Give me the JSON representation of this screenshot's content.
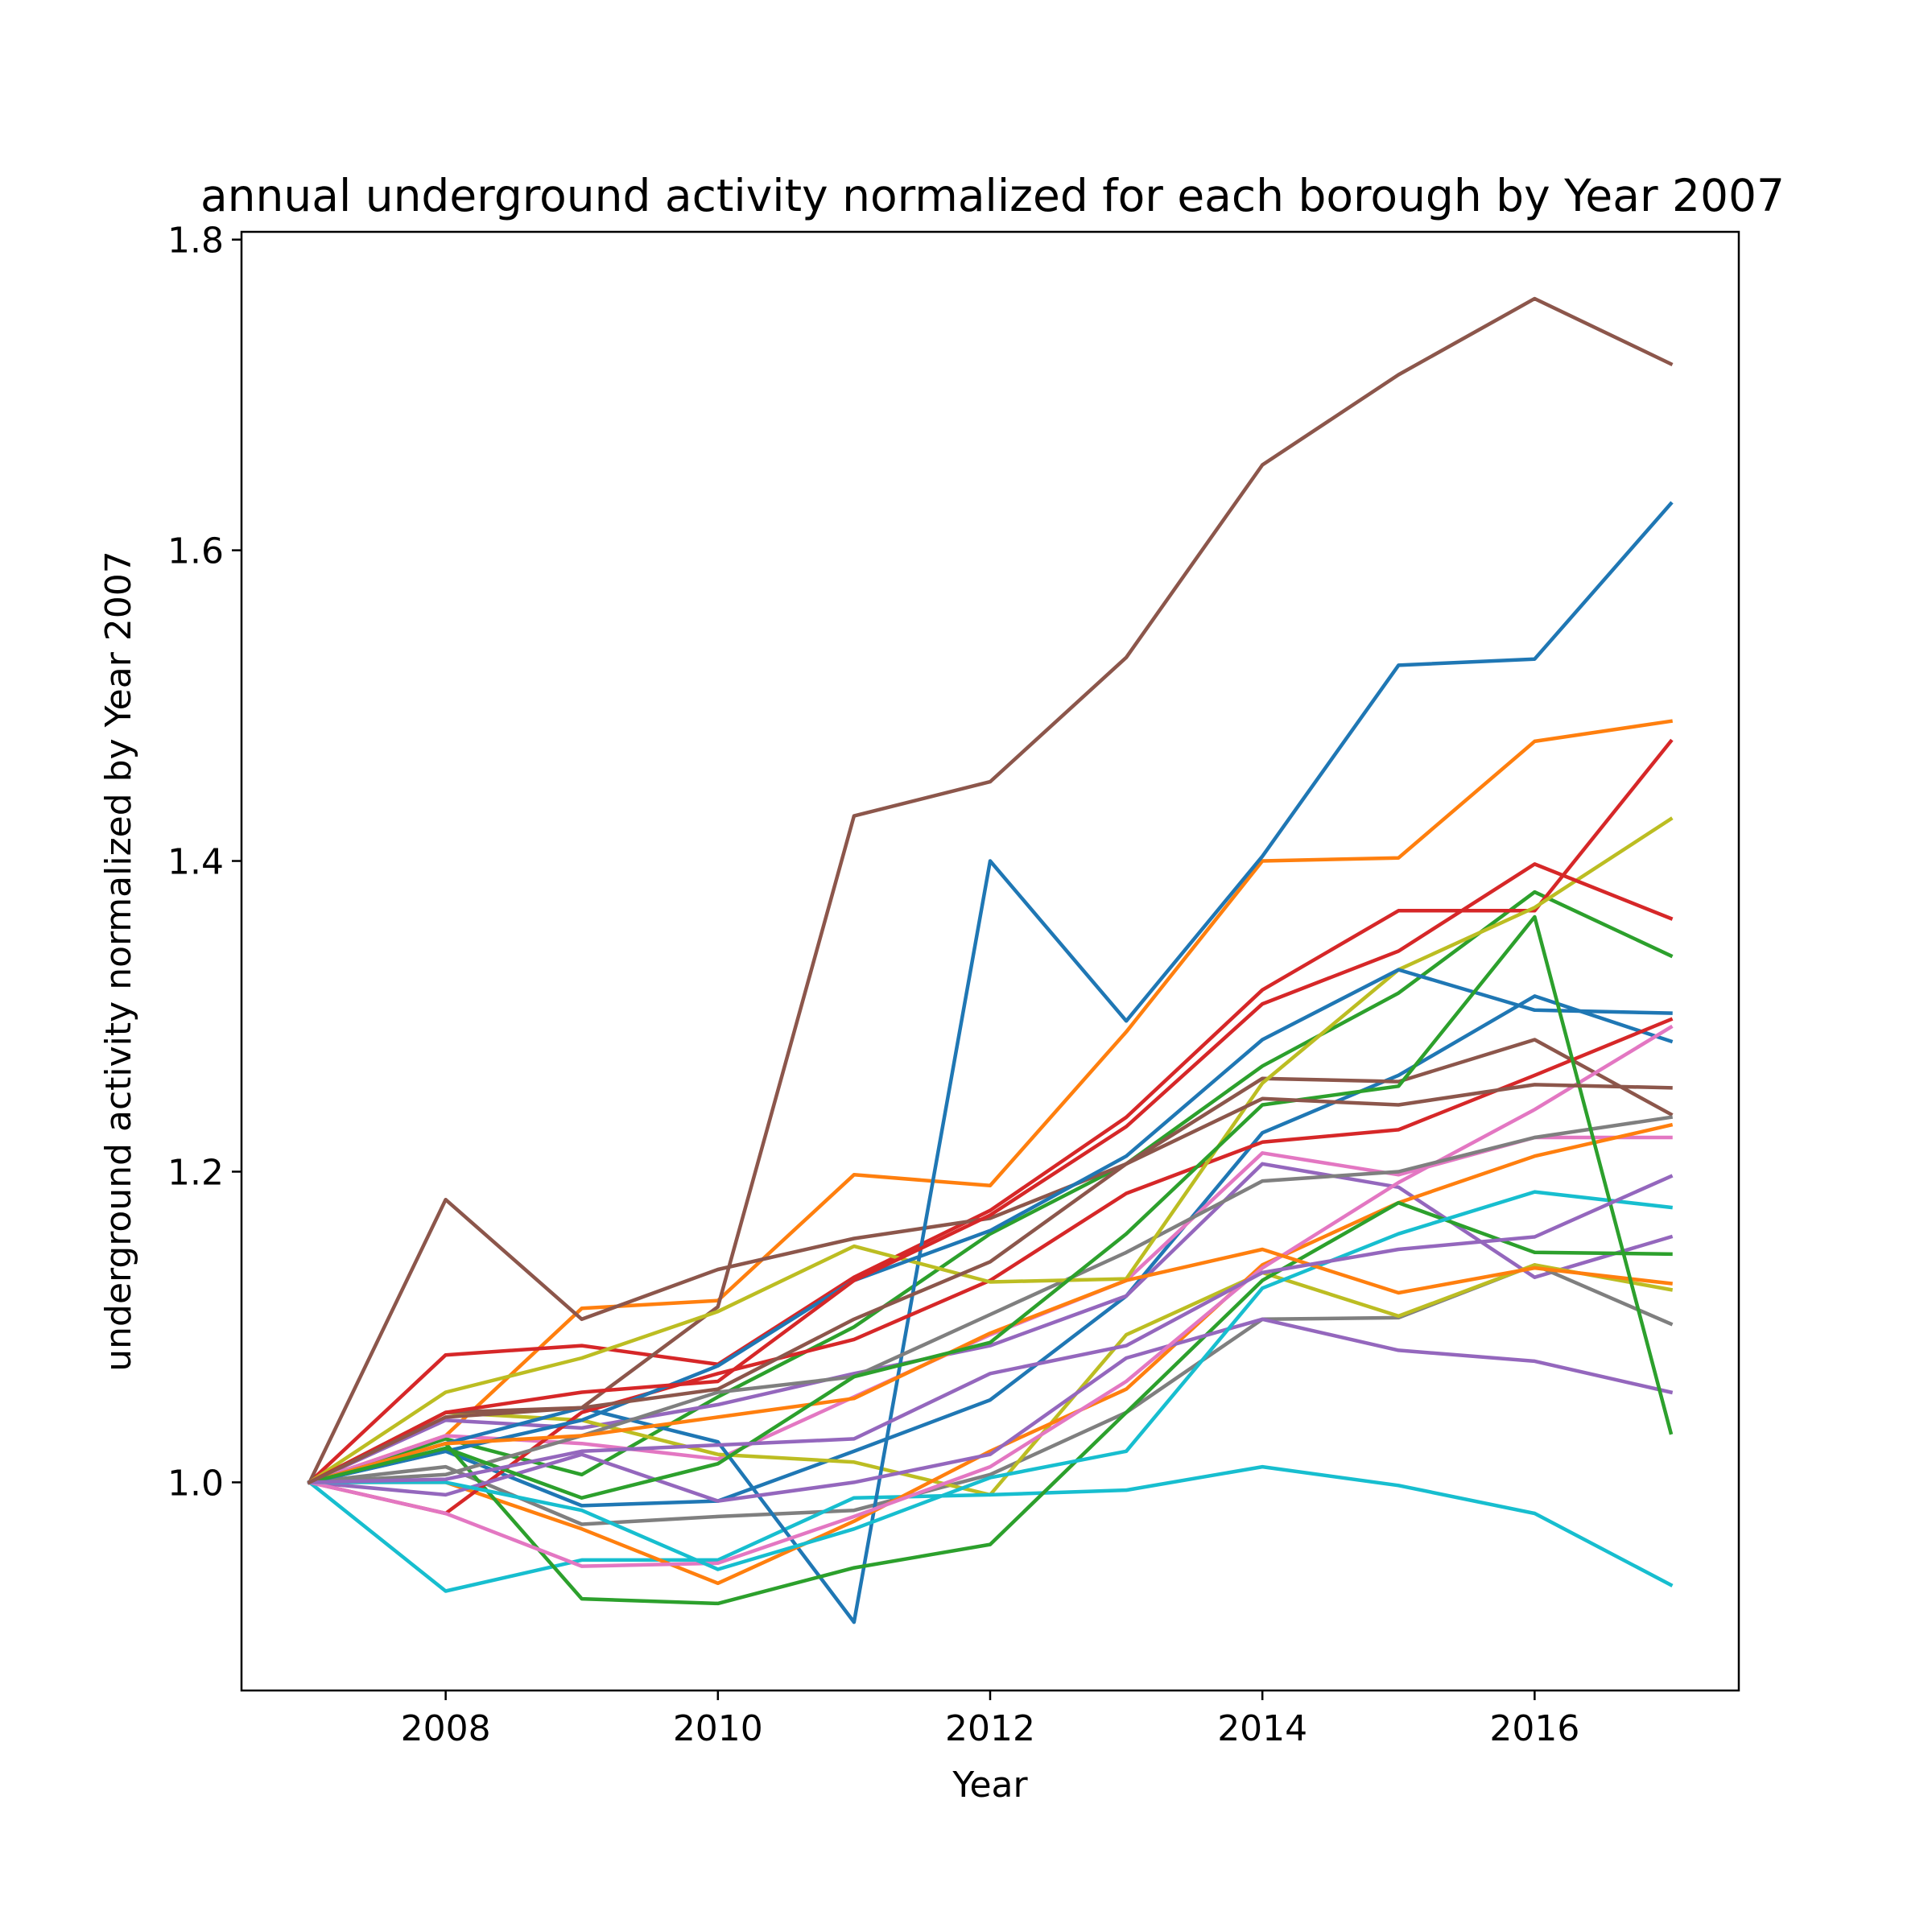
{
  "chart_data": {
    "type": "line",
    "title": "annual underground activity normalized for each borough by Year 2007",
    "xlabel": "Year",
    "ylabel": "underground activity normalized by Year 2007",
    "xlim": [
      2006.5,
      2017.5
    ],
    "ylim": [
      0.866,
      1.805
    ],
    "xticks": [
      2008,
      2010,
      2012,
      2014,
      2016
    ],
    "yticks": [
      1.0,
      1.2,
      1.4,
      1.6,
      1.8
    ],
    "ytick_labels": [
      "1.0",
      "1.2",
      "1.4",
      "1.6",
      "1.8"
    ],
    "grid": false,
    "legend": "none",
    "x": [
      2007,
      2008,
      2009,
      2010,
      2011,
      2012,
      2013,
      2014,
      2015,
      2016,
      2017
    ],
    "series": [
      {
        "color": "#1f77b4",
        "values": [
          1.0,
          1.02,
          0.985,
          0.988,
          1.02,
          1.053,
          1.12,
          1.225,
          1.262,
          1.313,
          1.284
        ]
      },
      {
        "color": "#ff7f0e",
        "values": [
          1.0,
          1.03,
          1.112,
          1.117,
          1.198,
          1.191,
          1.29,
          1.4,
          1.402,
          1.477,
          1.49
        ]
      },
      {
        "color": "#2ca02c",
        "values": [
          1.0,
          1.028,
          1.005,
          1.055,
          1.1,
          1.16,
          1.205,
          1.268,
          1.315,
          1.38,
          1.339
        ]
      },
      {
        "color": "#d62728",
        "values": [
          1.0,
          1.082,
          1.088,
          1.076,
          1.132,
          1.175,
          1.235,
          1.317,
          1.368,
          1.368,
          1.477
        ]
      },
      {
        "color": "#9467bd",
        "values": [
          1.0,
          1.04,
          1.035,
          1.05,
          1.07,
          1.088,
          1.12,
          1.205,
          1.19,
          1.132,
          1.158
        ]
      },
      {
        "color": "#8c564b",
        "values": [
          1.0,
          1.182,
          1.105,
          1.137,
          1.157,
          1.17,
          1.205,
          1.26,
          1.258,
          1.285,
          1.237
        ]
      },
      {
        "color": "#e377c2",
        "values": [
          1.0,
          1.03,
          1.025,
          1.015,
          1.055,
          1.095,
          1.13,
          1.212,
          1.198,
          1.222,
          1.222
        ]
      },
      {
        "color": "#7f7f7f",
        "values": [
          1.0,
          1.01,
          0.973,
          0.978,
          0.982,
          1.005,
          1.045,
          1.105,
          1.106,
          1.14,
          1.102
        ]
      },
      {
        "color": "#bcbd22",
        "values": [
          1.0,
          1.045,
          1.04,
          1.018,
          1.013,
          0.992,
          1.095,
          1.135,
          1.107,
          1.14,
          1.124
        ]
      },
      {
        "color": "#17becf",
        "values": [
          1.0,
          0.93,
          0.95,
          0.95,
          0.99,
          0.992,
          0.995,
          1.01,
          0.998,
          0.98,
          0.934
        ]
      },
      {
        "color": "#1f77b4",
        "values": [
          1.0,
          1.025,
          1.048,
          1.026,
          0.91,
          1.4,
          1.297,
          1.403,
          1.526,
          1.53,
          1.63
        ]
      },
      {
        "color": "#ff7f0e",
        "values": [
          1.0,
          1.0,
          0.97,
          0.935,
          0.975,
          1.02,
          1.06,
          1.14,
          1.18,
          1.21,
          1.23
        ]
      },
      {
        "color": "#2ca02c",
        "values": [
          1.0,
          1.025,
          0.925,
          0.922,
          0.945,
          0.96,
          1.045,
          1.13,
          1.18,
          1.148,
          1.147
        ]
      },
      {
        "color": "#d62728",
        "values": [
          1.0,
          0.98,
          1.045,
          1.07,
          1.092,
          1.13,
          1.186,
          1.219,
          1.227,
          1.262,
          1.298
        ]
      },
      {
        "color": "#9467bd",
        "values": [
          1.0,
          0.992,
          1.018,
          0.988,
          1.0,
          1.018,
          1.08,
          1.105,
          1.085,
          1.078,
          1.058
        ]
      },
      {
        "color": "#8c564b",
        "values": [
          1.0,
          1.045,
          1.048,
          1.113,
          1.429,
          1.451,
          1.531,
          1.655,
          1.713,
          1.762,
          1.72
        ]
      },
      {
        "color": "#e377c2",
        "values": [
          1.0,
          0.98,
          0.946,
          0.948,
          0.978,
          1.01,
          1.065,
          1.138,
          1.193,
          1.24,
          1.293
        ]
      },
      {
        "color": "#7f7f7f",
        "values": [
          1.0,
          1.005,
          1.03,
          1.058,
          1.068,
          1.108,
          1.148,
          1.194,
          1.2,
          1.222,
          1.235
        ]
      },
      {
        "color": "#bcbd22",
        "values": [
          1.0,
          1.058,
          1.08,
          1.11,
          1.152,
          1.129,
          1.131,
          1.257,
          1.33,
          1.37,
          1.427
        ]
      },
      {
        "color": "#17becf",
        "values": [
          1.0,
          1.0,
          0.982,
          0.944,
          0.97,
          1.003,
          1.02,
          1.125,
          1.16,
          1.187,
          1.177
        ]
      },
      {
        "color": "#1f77b4",
        "values": [
          1.0,
          1.02,
          1.04,
          1.075,
          1.13,
          1.162,
          1.21,
          1.285,
          1.33,
          1.304,
          1.302
        ]
      },
      {
        "color": "#ff7f0e",
        "values": [
          1.0,
          1.025,
          1.03,
          1.042,
          1.054,
          1.096,
          1.13,
          1.15,
          1.122,
          1.138,
          1.128
        ]
      },
      {
        "color": "#2ca02c",
        "values": [
          1.0,
          1.022,
          0.99,
          1.012,
          1.068,
          1.09,
          1.16,
          1.243,
          1.255,
          1.364,
          1.032
        ]
      },
      {
        "color": "#d62728",
        "values": [
          1.0,
          1.045,
          1.058,
          1.065,
          1.13,
          1.172,
          1.229,
          1.308,
          1.342,
          1.398,
          1.363
        ]
      },
      {
        "color": "#9467bd",
        "values": [
          1.0,
          1.002,
          1.02,
          1.024,
          1.028,
          1.07,
          1.088,
          1.135,
          1.15,
          1.158,
          1.197
        ]
      },
      {
        "color": "#8c564b",
        "values": [
          1.0,
          1.042,
          1.048,
          1.06,
          1.105,
          1.142,
          1.205,
          1.247,
          1.243,
          1.256,
          1.254
        ]
      }
    ]
  }
}
